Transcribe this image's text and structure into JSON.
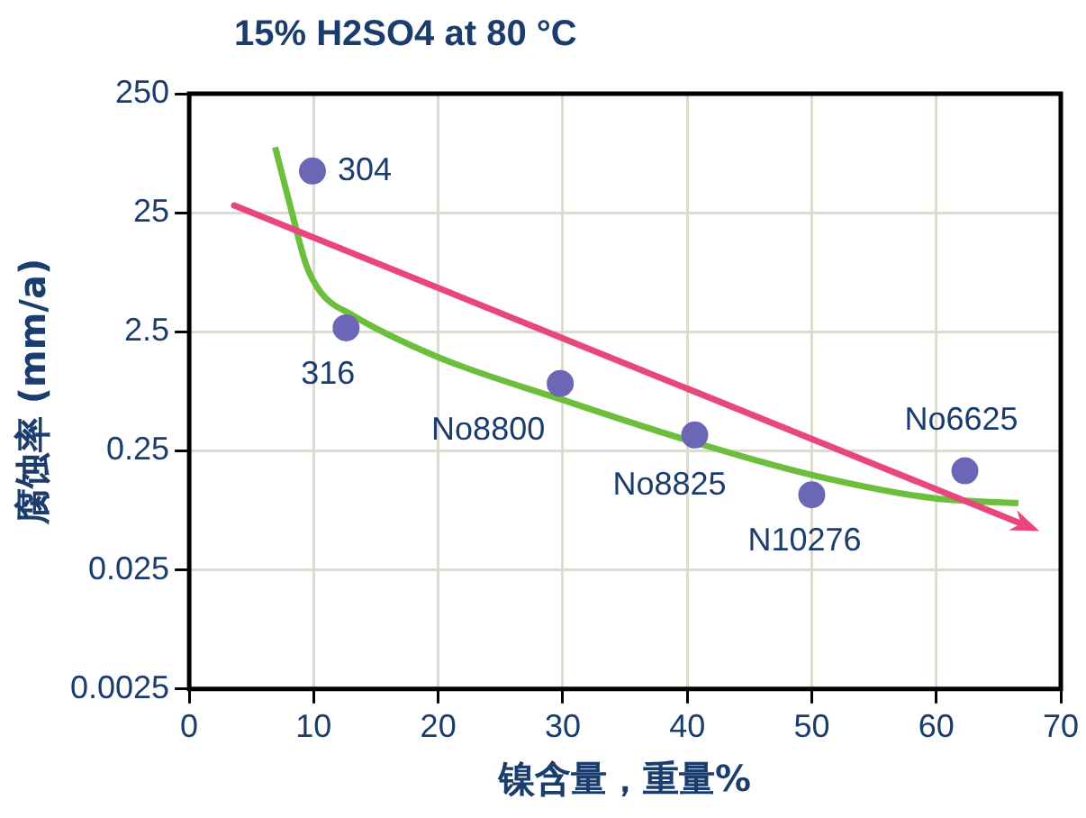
{
  "chart_data": {
    "type": "scatter",
    "title": "15% H2SO4 at 80 °C",
    "xlabel": "镍含量，重量%",
    "ylabel": "腐蚀率 (mm/a)",
    "xlim": [
      0,
      70
    ],
    "xticks": [
      0,
      10,
      20,
      30,
      40,
      50,
      60,
      70
    ],
    "ylim": [
      0.0025,
      250
    ],
    "yticks": [
      0.0025,
      0.025,
      0.25,
      2.5,
      25,
      250
    ],
    "log": "y",
    "grid": true,
    "line_style": "solid",
    "series": [
      {
        "marker": "circle",
        "color": "#6b67b6",
        "x": [
          9.9,
          12.6,
          29.8,
          40.6,
          50,
          62.3
        ],
        "values": [
          56,
          2.7,
          0.92,
          0.34,
          0.107,
          0.17
        ]
      },
      {
        "type": "line",
        "marker": "none",
        "color": "#6cbf3c",
        "x": [
          6.9,
          8.3,
          9.4,
          10.6,
          13,
          20,
          30,
          39.9,
          49.9,
          59.8,
          66.6
        ],
        "values": [
          89,
          24,
          9.1,
          5.3,
          3.5,
          1.53,
          0.67,
          0.31,
          0.158,
          0.1,
          0.091
        ]
      }
    ],
    "annotations": [
      {
        "text": "304",
        "x": 9.9,
        "y": 56
      },
      {
        "text": "316",
        "x": 12.6,
        "y": 2.7
      },
      {
        "text": "No8800",
        "x": 29.8,
        "y": 0.92
      },
      {
        "text": "No8825",
        "x": 40.6,
        "y": 0.34
      },
      {
        "text": "N10276",
        "x": 50,
        "y": 0.107
      },
      {
        "text": "No6625",
        "x": 62.3,
        "y": 0.17
      }
    ]
  }
}
